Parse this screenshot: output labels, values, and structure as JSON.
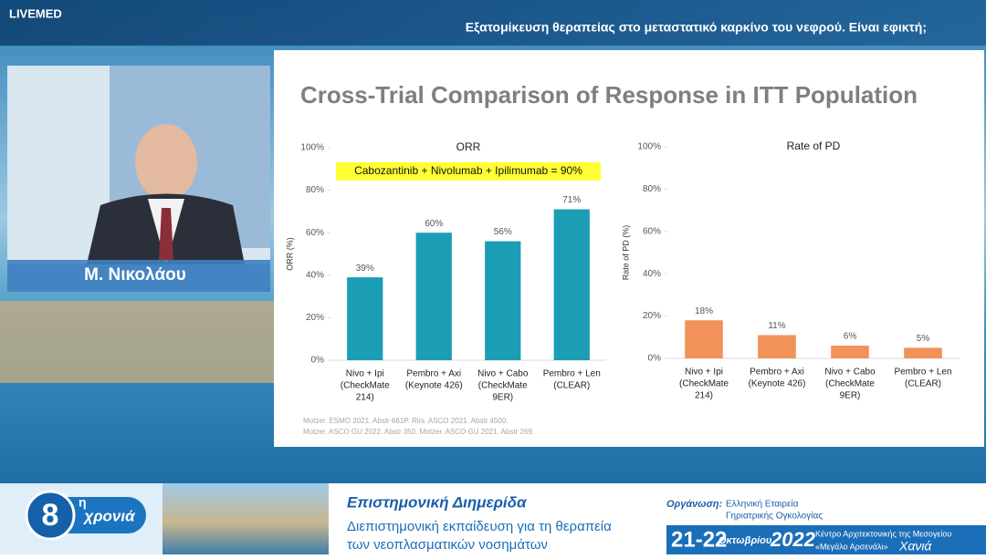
{
  "header": {
    "brand": "LIVEMED",
    "title": "Εξατομίκευση θεραπείας στο μεταστατικό καρκίνο του νεφρού. Είναι εφικτή;"
  },
  "speaker": {
    "name": "Μ. Νικολάου"
  },
  "slide": {
    "title": "Cross-Trial Comparison of Response in ITT Population",
    "references": [
      "Motzer. ESMO 2021. Abstr 661P. Rini. ASCO 2021. Abstr 4500.",
      "Motzer. ASCO GU 2022. Abstr 350. Motzer. ASCO GU 2021. Abstr 269."
    ]
  },
  "chart_data": [
    {
      "type": "bar",
      "title": "ORR",
      "y_label": "ORR (%)",
      "color": "#1b9db6",
      "annotation": "Cabozantinib + Nivolumab + Ipilimumab = 90%",
      "categories": [
        [
          "Nivo + Ipi",
          "(CheckMate",
          "214)"
        ],
        [
          "Pembro + Axi",
          "(Keynote 426)"
        ],
        [
          "Nivo + Cabo",
          "(CheckMate",
          "9ER)"
        ],
        [
          "Pembro + Len",
          "(CLEAR)"
        ]
      ],
      "values": [
        39,
        60,
        56,
        71
      ],
      "value_labels": [
        "39%",
        "60%",
        "56%",
        "71%"
      ],
      "ylim": [
        0,
        100
      ],
      "yticks": [
        {
          "value": 0,
          "label": "0%"
        },
        {
          "value": 20,
          "label": "20%"
        },
        {
          "value": 40,
          "label": "40%"
        },
        {
          "value": 60,
          "label": "60%"
        },
        {
          "value": 80,
          "label": "80%"
        },
        {
          "value": 100,
          "label": "100%"
        }
      ]
    },
    {
      "type": "bar",
      "title": "Rate of PD",
      "y_label": "Rate of PD (%)",
      "color": "#f0925a",
      "categories": [
        [
          "Nivo + Ipi",
          "(CheckMate",
          "214)"
        ],
        [
          "Pembro + Axi",
          "(Keynote 426)"
        ],
        [
          "Nivo + Cabo",
          "(CheckMate",
          "9ER)"
        ],
        [
          "Pembro + Len",
          "(CLEAR)"
        ]
      ],
      "values": [
        18,
        11,
        6,
        5
      ],
      "value_labels": [
        "18%",
        "11%",
        "6%",
        "5%"
      ],
      "ylim": [
        0,
        100
      ],
      "yticks": [
        {
          "value": 0,
          "label": "0%"
        },
        {
          "value": 20,
          "label": "20%"
        },
        {
          "value": 40,
          "label": "40%"
        },
        {
          "value": 60,
          "label": "60%"
        },
        {
          "value": 80,
          "label": "80%"
        },
        {
          "value": 100,
          "label": "100%"
        }
      ]
    }
  ],
  "footer": {
    "edition_number": "8",
    "edition_suffix": "η",
    "edition_word": "χρονιά",
    "event_title": "Επιστημονική Διημερίδα",
    "event_line1": "Διεπιστημονική εκπαίδευση για τη θεραπεία",
    "event_line2": "των νεοπλασματικών νοσημάτων",
    "organizer_label": "Οργάνωση:",
    "organizer_line1": "Ελληνική Εταιρεία",
    "organizer_line2": "Γηριατρικής Ογκολογίας",
    "dates": "21-22",
    "month": "Οκτωβρίου",
    "year": "2022",
    "venue_line1": "Κέντρο Αρχιτεκτονικής της Μεσογείου",
    "venue_line2": "«Μεγάλο Αρσενάλι»",
    "city": "Χανιά"
  }
}
